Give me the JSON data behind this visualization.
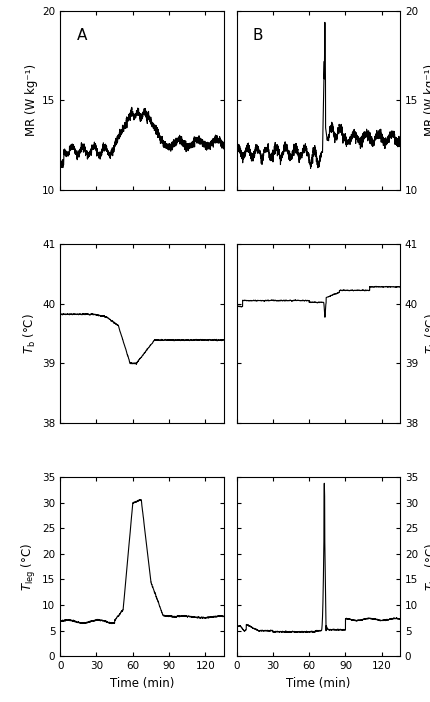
{
  "panels": [
    "A",
    "B"
  ],
  "MR_ylim": [
    10,
    20
  ],
  "MR_yticks": [
    10,
    15,
    20
  ],
  "MR_ylabel": "MR (W kg⁻¹)",
  "Tb_ylim": [
    38,
    41
  ],
  "Tb_yticks": [
    38,
    39,
    40,
    41
  ],
  "Tb_ylabel": "T_b (°C)",
  "Tleg_ylim": [
    0,
    35
  ],
  "Tleg_yticks": [
    0,
    5,
    10,
    15,
    20,
    25,
    30,
    35
  ],
  "Tleg_ylabel": "T_leg (°C)",
  "xlim": [
    0,
    135
  ],
  "xticks": [
    0,
    30,
    60,
    90,
    120
  ],
  "xlabel": "Time (min)",
  "line_color": "black",
  "line_width": 0.8,
  "background_color": "white"
}
